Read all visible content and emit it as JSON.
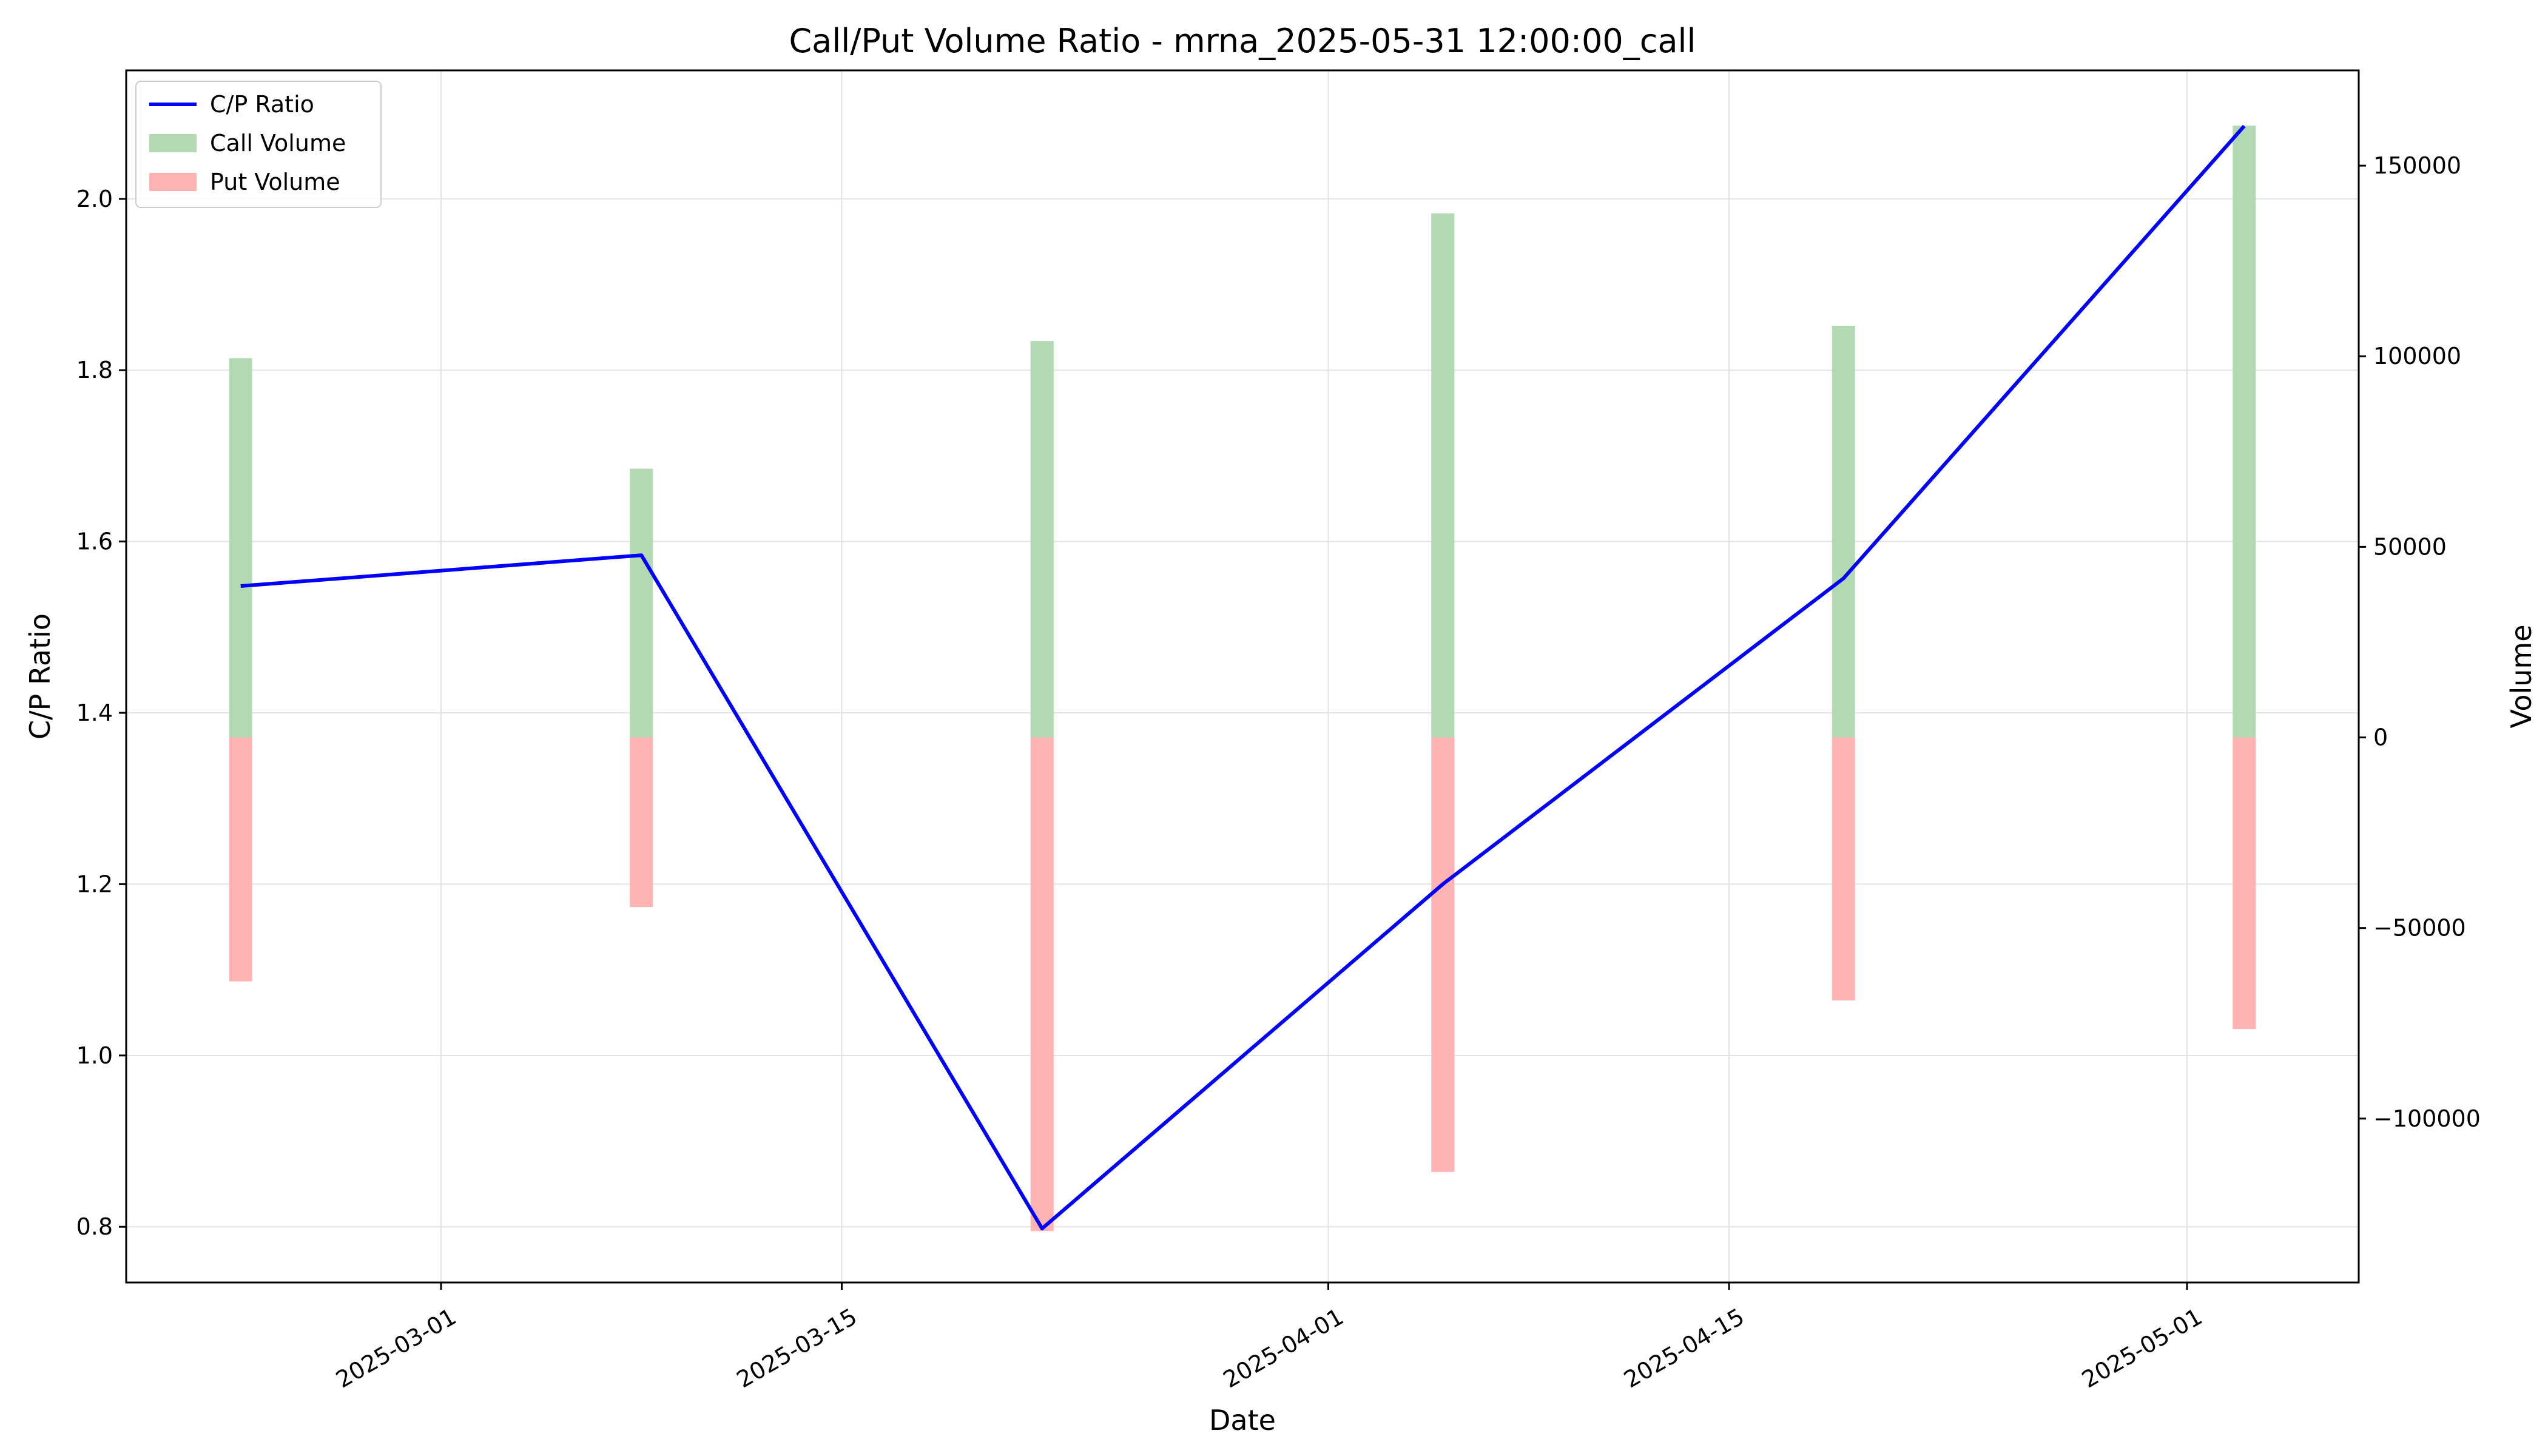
{
  "chart_data": {
    "type": "bar+line",
    "title": "Call/Put Volume Ratio - mrna_2025-05-31 12:00:00_call",
    "xlabel": "Date",
    "ylabel_left": "C/P Ratio",
    "ylabel_right": "Volume",
    "dates": [
      "2025-02-22",
      "2025-03-08",
      "2025-03-22",
      "2025-04-05",
      "2025-04-19",
      "2025-05-03"
    ],
    "x_ticks": [
      "2025-03-01",
      "2025-03-15",
      "2025-04-01",
      "2025-04-15",
      "2025-05-01"
    ],
    "x_range": [
      "2025-02-18",
      "2025-05-07"
    ],
    "y_left_range": [
      0.735,
      2.15
    ],
    "y_left_ticks": [
      0.8,
      1.0,
      1.2,
      1.4,
      1.6,
      1.8,
      2.0
    ],
    "y_left_tick_labels": [
      "0.8",
      "1.0",
      "1.2",
      "1.4",
      "1.6",
      "1.8",
      "2.0"
    ],
    "y_right_range": [
      -143000,
      175000
    ],
    "y_right_ticks": [
      -100000,
      -50000,
      0,
      50000,
      100000,
      150000
    ],
    "y_right_tick_labels": [
      "−100000",
      "−50000",
      "0",
      "50000",
      "100000",
      "150000"
    ],
    "grid": true,
    "legend_position": "top-left",
    "series": [
      {
        "name": "C/P Ratio",
        "kind": "line",
        "axis": "left",
        "color": "#0000ff",
        "values": [
          1.548,
          1.584,
          0.798,
          1.2,
          1.557,
          2.085
        ]
      },
      {
        "name": "Call Volume",
        "kind": "bar",
        "axis": "right",
        "color": "#b3d9b3",
        "values": [
          99500,
          70500,
          104000,
          137500,
          108000,
          160500
        ]
      },
      {
        "name": "Put Volume",
        "kind": "bar",
        "axis": "right",
        "color": "#ffb3b3",
        "values": [
          -64000,
          -44500,
          -129500,
          -114000,
          -69000,
          -76500
        ]
      }
    ]
  }
}
